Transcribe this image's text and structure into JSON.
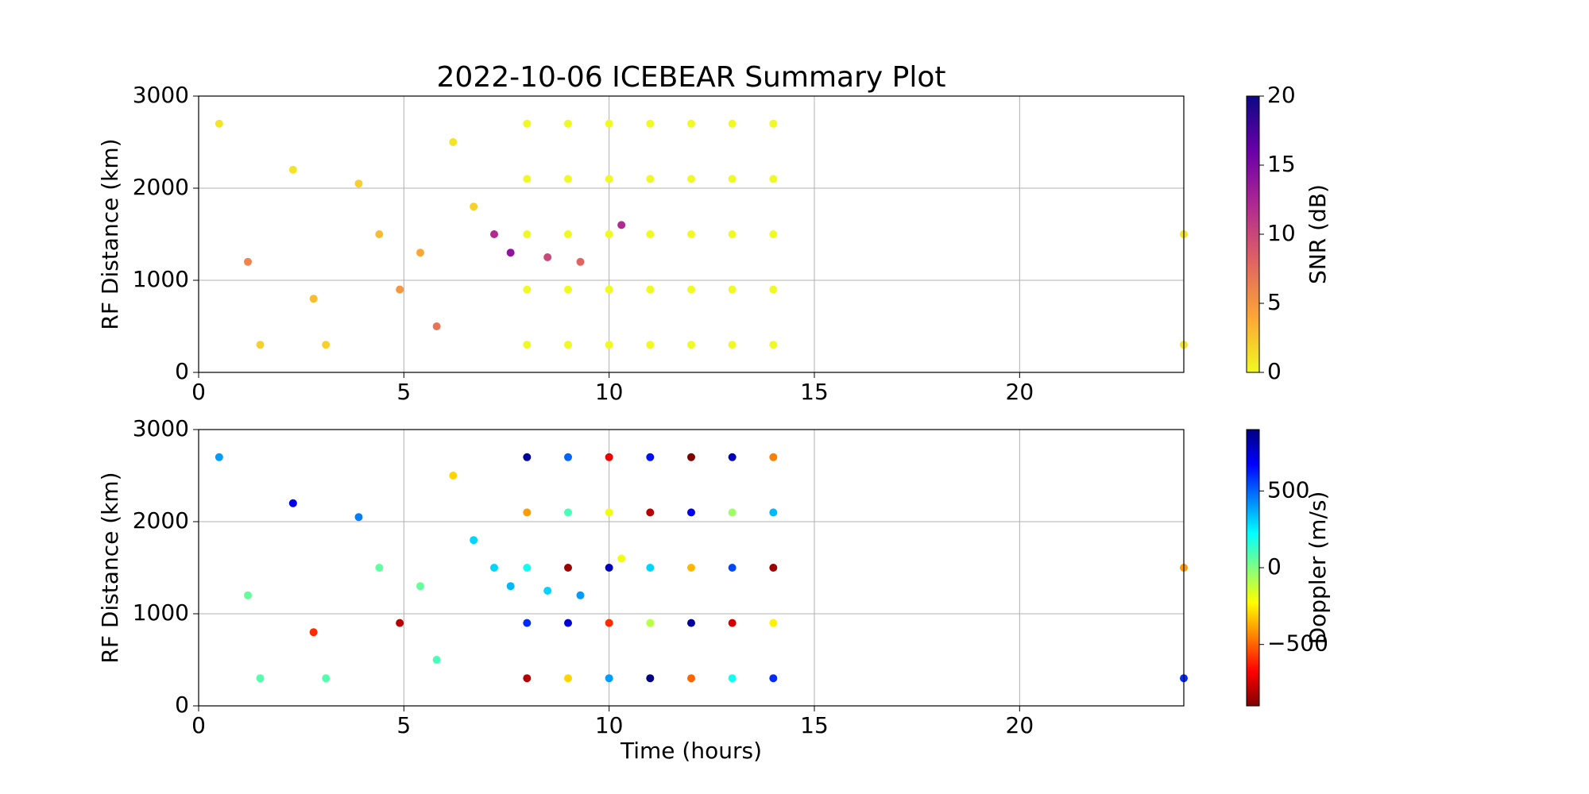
{
  "chart_data": [
    {
      "type": "scatter",
      "title": "2022-10-06 ICEBEAR Summary Plot",
      "ylabel": "RF Distance (km)",
      "xlim": [
        0,
        24
      ],
      "xticks": [
        0,
        5,
        10,
        15,
        20
      ],
      "ylim": [
        0,
        3000
      ],
      "yticks": [
        0,
        1000,
        2000,
        3000
      ],
      "grid": true,
      "colorbar_label": "SNR (dB)",
      "clim": [
        0,
        20
      ],
      "cticks": [
        0,
        5,
        10,
        15,
        20
      ],
      "colormap": [
        "#f0f921",
        "#fca636",
        "#e16462",
        "#b12a90",
        "#6a00a8",
        "#0d0887"
      ],
      "x": [
        8,
        8,
        8,
        8,
        8,
        9,
        9,
        9,
        9,
        9,
        10,
        10,
        10,
        10,
        10,
        11,
        11,
        11,
        11,
        11,
        12,
        12,
        12,
        12,
        12,
        13,
        13,
        13,
        13,
        13,
        14,
        14,
        14,
        14,
        14,
        0.5,
        1.2,
        1.5,
        2.3,
        2.8,
        3.1,
        3.9,
        4.4,
        4.9,
        5.4,
        5.8,
        6.2,
        6.7,
        7.2,
        7.6,
        8.5,
        9.3,
        10.3,
        24,
        24
      ],
      "values": [
        300,
        900,
        1500,
        2100,
        2700,
        300,
        900,
        1500,
        2100,
        2700,
        300,
        900,
        1500,
        2100,
        2700,
        300,
        900,
        1500,
        2100,
        2700,
        300,
        900,
        1500,
        2100,
        2700,
        300,
        900,
        1500,
        2100,
        2700,
        300,
        900,
        1500,
        2100,
        2700,
        2700,
        1200,
        300,
        2200,
        800,
        300,
        2050,
        1500,
        900,
        1300,
        500,
        2500,
        1800,
        1500,
        1300,
        1250,
        1200,
        1600,
        1500,
        300
      ],
      "c": [
        0,
        0,
        0,
        0,
        0,
        0,
        0,
        0,
        0,
        0,
        0,
        0,
        0,
        0,
        0,
        0,
        0,
        0,
        0,
        0,
        0,
        0,
        0,
        0,
        0,
        0,
        0,
        0,
        0,
        0,
        0,
        0,
        0,
        0,
        0,
        1,
        6,
        2,
        1,
        3,
        2,
        2,
        3,
        5,
        4,
        7,
        1,
        2,
        12,
        14,
        10,
        8,
        12,
        1,
        1
      ]
    },
    {
      "type": "scatter",
      "ylabel": "RF Distance (km)",
      "xlabel": "Time (hours)",
      "xlim": [
        0,
        24
      ],
      "xticks": [
        0,
        5,
        10,
        15,
        20
      ],
      "ylim": [
        0,
        3000
      ],
      "yticks": [
        0,
        1000,
        2000,
        3000
      ],
      "grid": true,
      "colorbar_label": "Doppler (m/s)",
      "clim": [
        -900,
        900
      ],
      "cticks": [
        {
          "value": -500,
          "label": "−500"
        },
        0,
        500
      ],
      "colormap": [
        "#800000",
        "#ff0000",
        "#ff8000",
        "#ffff00",
        "#80ff80",
        "#00ffff",
        "#0080ff",
        "#0000ff",
        "#000080"
      ],
      "x": [
        8,
        8,
        8,
        8,
        8,
        9,
        9,
        9,
        9,
        9,
        10,
        10,
        10,
        10,
        10,
        11,
        11,
        11,
        11,
        11,
        12,
        12,
        12,
        12,
        12,
        13,
        13,
        13,
        13,
        13,
        14,
        14,
        14,
        14,
        14,
        0.5,
        1.2,
        1.5,
        2.3,
        2.8,
        3.1,
        3.9,
        4.4,
        4.9,
        5.4,
        5.8,
        6.2,
        6.7,
        7.2,
        7.6,
        8.5,
        9.3,
        10.3,
        24,
        24
      ],
      "values": [
        300,
        900,
        1500,
        2100,
        2700,
        300,
        900,
        1500,
        2100,
        2700,
        300,
        900,
        1500,
        2100,
        2700,
        300,
        900,
        1500,
        2100,
        2700,
        300,
        900,
        1500,
        2100,
        2700,
        300,
        900,
        1500,
        2100,
        2700,
        300,
        900,
        1500,
        2100,
        2700,
        2700,
        1200,
        300,
        2200,
        800,
        300,
        2050,
        1500,
        900,
        1300,
        500,
        2500,
        1800,
        1500,
        1300,
        1250,
        1200,
        1600,
        1500,
        300
      ],
      "c": [
        -800,
        600,
        200,
        -400,
        850,
        -300,
        750,
        -850,
        100,
        500,
        400,
        -600,
        800,
        -200,
        -700,
        900,
        -100,
        300,
        -800,
        650,
        -500,
        850,
        -350,
        700,
        -900,
        200,
        -750,
        550,
        -50,
        800,
        600,
        -250,
        -850,
        350,
        -450,
        400,
        50,
        80,
        700,
        -600,
        80,
        450,
        60,
        -800,
        50,
        100,
        -300,
        300,
        300,
        350,
        300,
        400,
        -200,
        -400,
        600
      ]
    }
  ]
}
